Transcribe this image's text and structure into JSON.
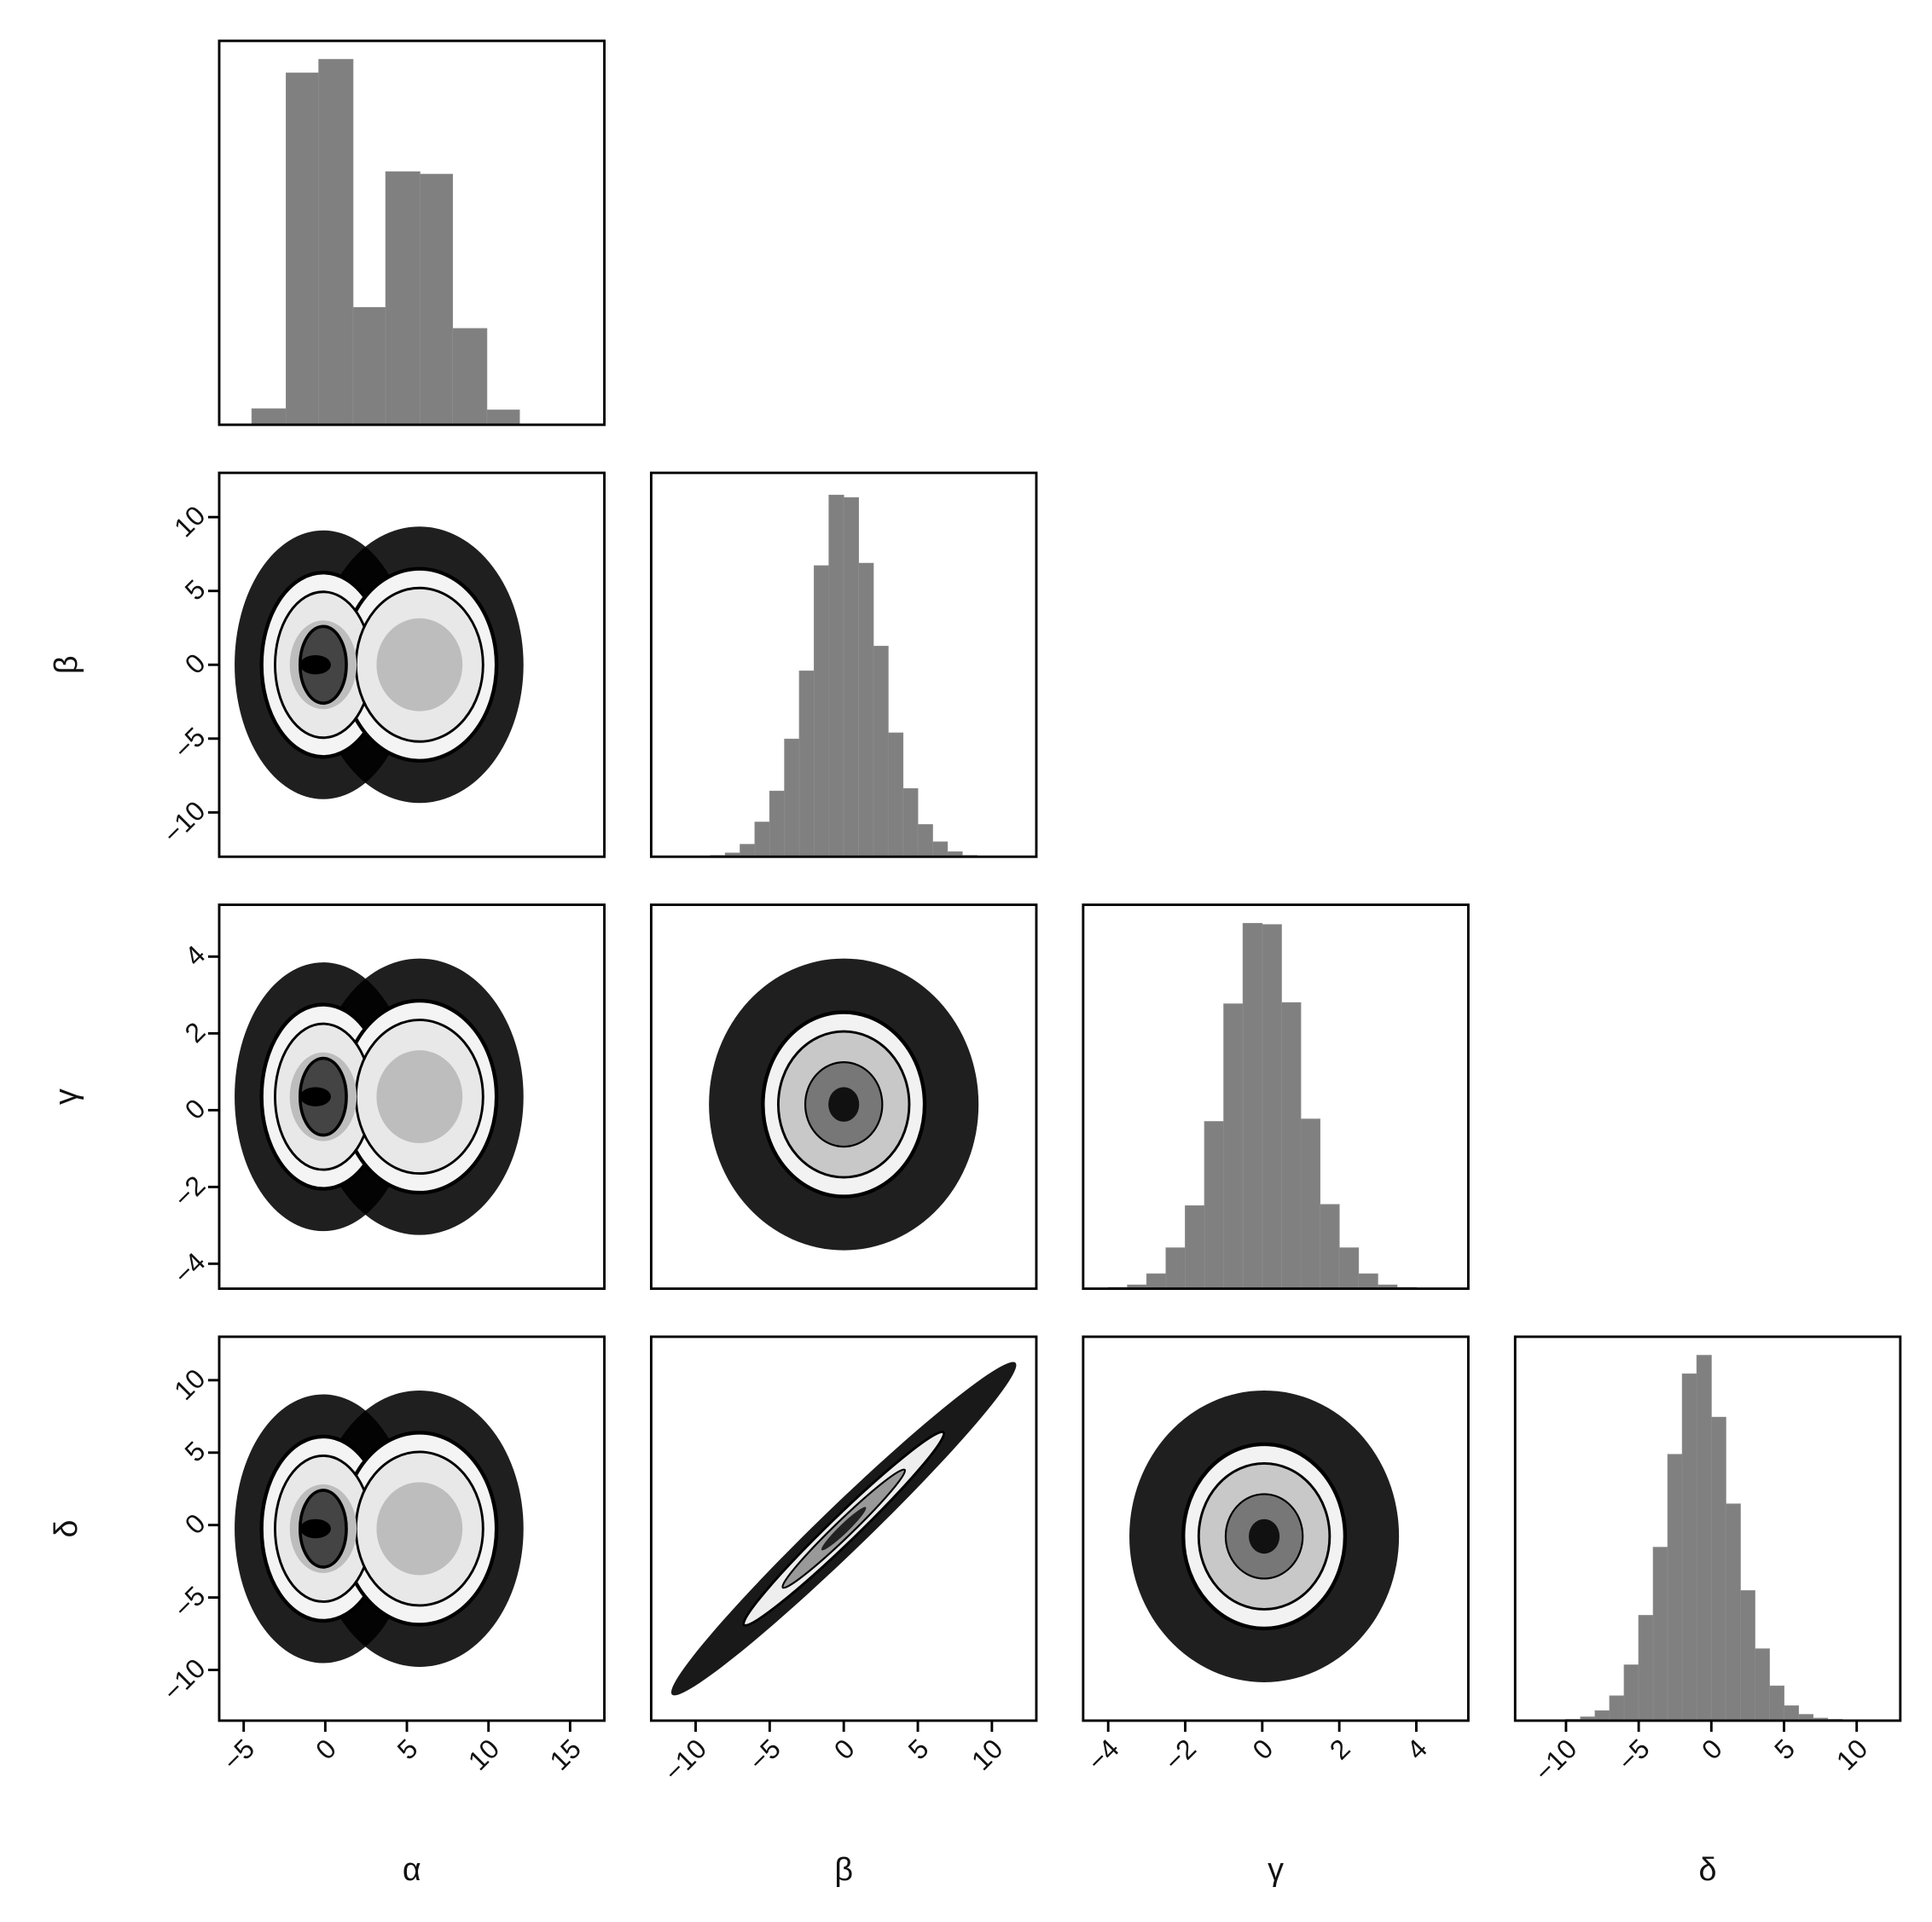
{
  "chart_data": {
    "type": "corner",
    "parameters": [
      {
        "label": "α",
        "lim": [
          -6.5,
          17.1
        ],
        "ticks": [
          {
            "value": -5,
            "label": "−5"
          },
          0,
          5,
          10,
          15
        ],
        "hist": {
          "bins": [
            -4.5,
            -2.4,
            -0.4,
            1.7,
            3.7,
            5.8,
            7.8,
            9.9,
            11.9
          ],
          "counts": [
            13,
            285,
            296,
            95,
            205,
            203,
            78,
            12
          ],
          "ylim": [
            0,
            311
          ]
        }
      },
      {
        "label": "β",
        "lim": [
          -13,
          13
        ],
        "ticks": [
          {
            "value": -10,
            "label": "−10"
          },
          {
            "value": -5,
            "label": "−5"
          },
          0,
          5,
          10
        ],
        "hist": {
          "bins": [
            -9,
            -8,
            -7,
            -6,
            -5,
            -4,
            -3,
            -2,
            -1,
            0,
            1,
            2,
            3,
            4,
            5,
            6,
            7,
            8,
            9
          ],
          "counts": [
            1,
            3,
            10,
            28,
            53,
            95,
            150,
            235,
            292,
            290,
            237,
            170,
            100,
            55,
            26,
            12,
            4,
            1
          ],
          "ylim": [
            0,
            310
          ]
        }
      },
      {
        "label": "γ",
        "lim": [
          -4.65,
          5.35
        ],
        "ticks": [
          {
            "value": -4,
            "label": "−4"
          },
          {
            "value": -2,
            "label": "−2"
          },
          0,
          2,
          4
        ],
        "hist": {
          "bins": [
            -4,
            -3.5,
            -3,
            -2.5,
            -2,
            -1.5,
            -1,
            -0.5,
            0,
            0.5,
            1,
            1.5,
            2,
            2.5,
            3,
            3.5,
            4
          ],
          "counts": [
            1,
            3,
            12,
            33,
            67,
            135,
            230,
            295,
            294,
            231,
            137,
            68,
            33,
            12,
            3,
            1
          ],
          "ylim": [
            0,
            310
          ]
        }
      },
      {
        "label": "δ",
        "lim": [
          -13.5,
          13
        ],
        "ticks": [
          {
            "value": -10,
            "label": "−10"
          },
          {
            "value": -5,
            "label": "−5"
          },
          0,
          5,
          10
        ],
        "hist": {
          "bins": [
            -10,
            -9,
            -8,
            -7,
            -6,
            -5,
            -4,
            -3,
            -2,
            -1,
            0,
            1,
            2,
            3,
            4,
            5,
            6,
            7,
            8,
            9
          ],
          "counts": [
            1,
            3,
            8,
            20,
            45,
            85,
            140,
            215,
            280,
            295,
            245,
            175,
            105,
            58,
            28,
            12,
            5,
            2,
            1
          ],
          "ylim": [
            0,
            310
          ]
        }
      }
    ]
  }
}
